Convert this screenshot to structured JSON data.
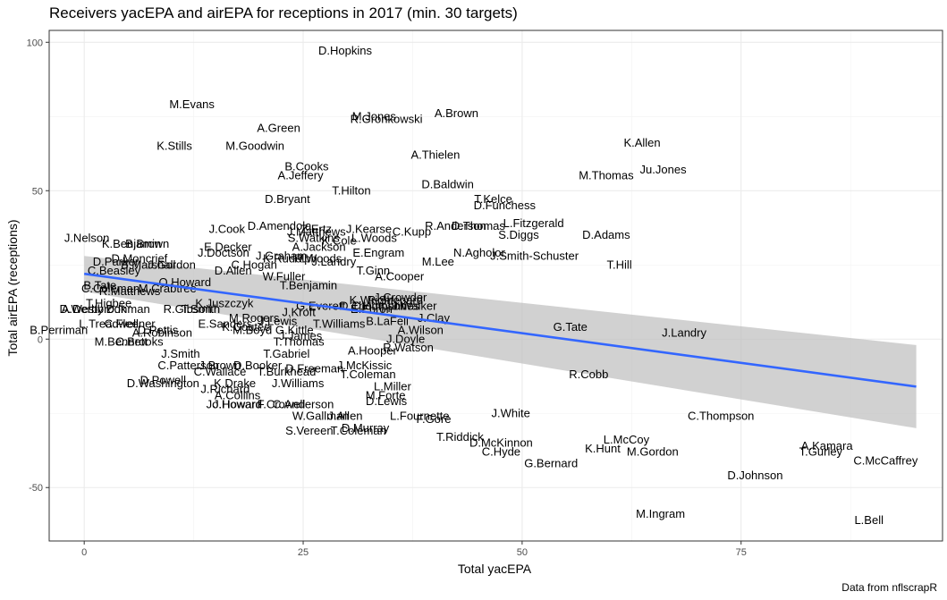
{
  "chart_data": {
    "type": "scatter",
    "title": "Receivers yacEPA and airEPA for receptions in 2017 (min. 30 targets)",
    "xlabel": "Total yacEPA",
    "ylabel": "Total airEPA (receptions)",
    "caption": "Data from nflscrapR",
    "xlim": [
      -4,
      98
    ],
    "ylim": [
      -68,
      104
    ],
    "xticks": [
      0,
      25,
      50,
      75
    ],
    "yticks": [
      -50,
      0,
      50,
      100
    ],
    "grid": true,
    "colors": {
      "fit_line": "#3366ff",
      "ribbon": "#bdbdbd",
      "panel_border": "#333333",
      "grid": "#ebebeb"
    },
    "trend": {
      "x": [
        0,
        95
      ],
      "y": [
        22,
        -16
      ],
      "ci_x": [
        0,
        95
      ],
      "ci_upper": [
        28,
        -2
      ],
      "ci_lower": [
        16,
        -30
      ]
    },
    "points": [
      {
        "label": "D.Hopkins",
        "x": 29.8,
        "y": 97
      },
      {
        "label": "M.Evans",
        "x": 12.3,
        "y": 79
      },
      {
        "label": "A.Brown",
        "x": 42.5,
        "y": 76
      },
      {
        "label": "M.Jones",
        "x": 33.1,
        "y": 75
      },
      {
        "label": "R.Gronkowski",
        "x": 34.5,
        "y": 74
      },
      {
        "label": "A.Green",
        "x": 22.2,
        "y": 71
      },
      {
        "label": "K.Stills",
        "x": 10.3,
        "y": 65
      },
      {
        "label": "M.Goodwin",
        "x": 19.5,
        "y": 65
      },
      {
        "label": "K.Allen",
        "x": 63.7,
        "y": 66
      },
      {
        "label": "A.Thielen",
        "x": 40.1,
        "y": 62
      },
      {
        "label": "Ju.Jones",
        "x": 66.1,
        "y": 57
      },
      {
        "label": "B.Cooks",
        "x": 25.4,
        "y": 58
      },
      {
        "label": "M.Thomas",
        "x": 59.6,
        "y": 55
      },
      {
        "label": "A.Jeffery",
        "x": 24.7,
        "y": 55
      },
      {
        "label": "D.Baldwin",
        "x": 41.5,
        "y": 52
      },
      {
        "label": "T.Hilton",
        "x": 30.5,
        "y": 50
      },
      {
        "label": "D.Bryant",
        "x": 23.2,
        "y": 47
      },
      {
        "label": "T.Kelce",
        "x": 46.7,
        "y": 47
      },
      {
        "label": "D.Funchess",
        "x": 48.0,
        "y": 45
      },
      {
        "label": "L.Fitzgerald",
        "x": 51.3,
        "y": 39
      },
      {
        "label": "R.Anderson",
        "x": 42.4,
        "y": 38
      },
      {
        "label": "D.Thomas",
        "x": 45.0,
        "y": 38
      },
      {
        "label": "D.Amendola",
        "x": 22.3,
        "y": 38
      },
      {
        "label": "Z.Ertz",
        "x": 26.5,
        "y": 37
      },
      {
        "label": "J.Kearse",
        "x": 32.5,
        "y": 37
      },
      {
        "label": "C.Kupp",
        "x": 37.4,
        "y": 36
      },
      {
        "label": "J.Matthews",
        "x": 26.5,
        "y": 36
      },
      {
        "label": "J.Cook",
        "x": 16.3,
        "y": 37
      },
      {
        "label": "S.Diggs",
        "x": 49.6,
        "y": 35
      },
      {
        "label": "D.Adams",
        "x": 59.6,
        "y": 35
      },
      {
        "label": "J.Nelson",
        "x": 0.3,
        "y": 34
      },
      {
        "label": "L.Woods",
        "x": 33.1,
        "y": 34
      },
      {
        "label": "S.Watkins",
        "x": 26.2,
        "y": 34
      },
      {
        "label": "K.Benjamin",
        "x": 5.4,
        "y": 32
      },
      {
        "label": "B.Brown",
        "x": 7.2,
        "y": 32
      },
      {
        "label": "K.Cole",
        "x": 29.1,
        "y": 33
      },
      {
        "label": "A.Jackson",
        "x": 26.8,
        "y": 31
      },
      {
        "label": "E.Decker",
        "x": 16.4,
        "y": 31
      },
      {
        "label": "J.Doctson",
        "x": 15.9,
        "y": 29
      },
      {
        "label": "E.Engram",
        "x": 33.6,
        "y": 29
      },
      {
        "label": "N.Agholor",
        "x": 45.1,
        "y": 29
      },
      {
        "label": "J.Smith-Schuster",
        "x": 51.4,
        "y": 28
      },
      {
        "label": "D.Moncrief",
        "x": 6.3,
        "y": 27
      },
      {
        "label": "M.Lee",
        "x": 40.4,
        "y": 26
      },
      {
        "label": "T.Hill",
        "x": 61.1,
        "y": 25
      },
      {
        "label": "D.Parker",
        "x": 3.6,
        "y": 26
      },
      {
        "label": "J.Graham",
        "x": 22.5,
        "y": 28
      },
      {
        "label": "R.Woods",
        "x": 26.7,
        "y": 27
      },
      {
        "label": "J.Landry_alt",
        "x": 28.5,
        "y": 26
      },
      {
        "label": "C.Hogan",
        "x": 19.4,
        "y": 25
      },
      {
        "label": "K.Rudolph",
        "x": 23.5,
        "y": 27
      },
      {
        "label": "B.Marshall",
        "x": 7.3,
        "y": 25
      },
      {
        "label": "J.Gordon",
        "x": 10.0,
        "y": 25
      },
      {
        "label": "D.Allen",
        "x": 17.0,
        "y": 23
      },
      {
        "label": "W.Fuller",
        "x": 22.8,
        "y": 21
      },
      {
        "label": "C.Beasley",
        "x": 3.4,
        "y": 23
      },
      {
        "label": "T.Ginn",
        "x": 33.0,
        "y": 23
      },
      {
        "label": "A.Cooper",
        "x": 36.0,
        "y": 21
      },
      {
        "label": "T.Benjamin",
        "x": 25.6,
        "y": 18
      },
      {
        "label": "O.Howard",
        "x": 11.5,
        "y": 19
      },
      {
        "label": "B.Tate",
        "x": 1.8,
        "y": 18
      },
      {
        "label": "C.Coleman",
        "x": 3.0,
        "y": 17
      },
      {
        "label": "R.Matthews",
        "x": 5.2,
        "y": 16
      },
      {
        "label": "M.Crabtree",
        "x": 9.5,
        "y": 17
      },
      {
        "label": "J.Crowder",
        "x": 36.1,
        "y": 14
      },
      {
        "label": "K.Wright",
        "x": 32.8,
        "y": 13
      },
      {
        "label": "R.Shepard",
        "x": 35.5,
        "y": 13
      },
      {
        "label": "G.Everett",
        "x": 27.0,
        "y": 11
      },
      {
        "label": "D.Thompson",
        "x": 33.0,
        "y": 11
      },
      {
        "label": "C.Humphries",
        "x": 34.4,
        "y": 11
      },
      {
        "label": "J.Walker",
        "x": 37.7,
        "y": 11
      },
      {
        "label": "A.Derby",
        "x": -0.2,
        "y": 10
      },
      {
        "label": "T.Higbee",
        "x": 2.8,
        "y": 12
      },
      {
        "label": "E.Ebron",
        "x": 32.8,
        "y": 10
      },
      {
        "label": "D.Inman",
        "x": 5.0,
        "y": 10
      },
      {
        "label": "R.Gibson",
        "x": 11.8,
        "y": 10
      },
      {
        "label": "D.Westbrook",
        "x": 1.0,
        "y": 10
      },
      {
        "label": "K.Juszczyk",
        "x": 16.0,
        "y": 12
      },
      {
        "label": "T.Smith",
        "x": 13.3,
        "y": 10
      },
      {
        "label": "M.Rogers",
        "x": 19.4,
        "y": 7
      },
      {
        "label": "J.Kroft",
        "x": 24.5,
        "y": 9
      },
      {
        "label": "B.LaFell",
        "x": 34.6,
        "y": 6
      },
      {
        "label": "T.Williams",
        "x": 29.1,
        "y": 5
      },
      {
        "label": "J.Clay",
        "x": 39.9,
        "y": 7
      },
      {
        "label": "A.Wilson",
        "x": 38.4,
        "y": 3
      },
      {
        "label": "G.Tate",
        "x": 55.5,
        "y": 4
      },
      {
        "label": "J.Landry",
        "x": 68.5,
        "y": 2
      },
      {
        "label": "B.Perriman",
        "x": -2.9,
        "y": 3
      },
      {
        "label": "L.Treadwell",
        "x": 2.8,
        "y": 5
      },
      {
        "label": "J.Lewis",
        "x": 22.1,
        "y": 6
      },
      {
        "label": "E.Sanders",
        "x": 16.1,
        "y": 5
      },
      {
        "label": "C.Fleener",
        "x": 5.2,
        "y": 5
      },
      {
        "label": "D.Pettis",
        "x": 8.4,
        "y": 3
      },
      {
        "label": "A.Robinson",
        "x": 8.9,
        "y": 2
      },
      {
        "label": "K.Coutee",
        "x": 18.5,
        "y": 4
      },
      {
        "label": "M.Boyd",
        "x": 19.2,
        "y": 3
      },
      {
        "label": "G.Kittle",
        "x": 24.0,
        "y": 3
      },
      {
        "label": "J.James",
        "x": 24.7,
        "y": 1
      },
      {
        "label": "M.Bennett",
        "x": 4.2,
        "y": -1
      },
      {
        "label": "C.Brooks",
        "x": 6.3,
        "y": -1
      },
      {
        "label": "T.Thomas",
        "x": 24.5,
        "y": -1
      },
      {
        "label": "J.Doyle",
        "x": 36.7,
        "y": 0
      },
      {
        "label": "A.Hooper",
        "x": 32.9,
        "y": -4
      },
      {
        "label": "R.Watson",
        "x": 37.0,
        "y": -3
      },
      {
        "label": "J.Smith",
        "x": 11.0,
        "y": -5
      },
      {
        "label": "T.Gabriel",
        "x": 23.1,
        "y": -5
      },
      {
        "label": "C.Patterson",
        "x": 11.9,
        "y": -9
      },
      {
        "label": "J.Brown",
        "x": 15.5,
        "y": -9
      },
      {
        "label": "D.Booker",
        "x": 19.8,
        "y": -9
      },
      {
        "label": "D.Freeman",
        "x": 26.3,
        "y": -10
      },
      {
        "label": "J.McKissic",
        "x": 32.0,
        "y": -9
      },
      {
        "label": "C.Wallace",
        "x": 15.5,
        "y": -11
      },
      {
        "label": "T.Burkhead",
        "x": 23.1,
        "y": -11
      },
      {
        "label": "T.Coleman",
        "x": 32.4,
        "y": -12
      },
      {
        "label": "J.Williams",
        "x": 24.4,
        "y": -15
      },
      {
        "label": "L.Miller",
        "x": 35.2,
        "y": -16
      },
      {
        "label": "R.Cobb",
        "x": 57.6,
        "y": -12
      },
      {
        "label": "D.Powell",
        "x": 9.0,
        "y": -14
      },
      {
        "label": "D.Washington",
        "x": 9.0,
        "y": -15
      },
      {
        "label": "K.Drake",
        "x": 17.2,
        "y": -15
      },
      {
        "label": "J.Richard",
        "x": 16.1,
        "y": -17
      },
      {
        "label": "A.Collins",
        "x": 17.5,
        "y": -19
      },
      {
        "label": "M.Forte",
        "x": 34.4,
        "y": -19
      },
      {
        "label": "D.Lewis",
        "x": 34.5,
        "y": -21
      },
      {
        "label": "J.Howard",
        "x": 17.5,
        "y": -22
      },
      {
        "label": "Jo.Howard",
        "x": 17.1,
        "y": -22
      },
      {
        "label": "F.Crowell",
        "x": 22.5,
        "y": -22
      },
      {
        "label": "C.Anderson",
        "x": 25.0,
        "y": -22
      },
      {
        "label": "W.Gallman",
        "x": 27.0,
        "y": -26
      },
      {
        "label": "J.Allen",
        "x": 29.8,
        "y": -26
      },
      {
        "label": "L.Fournette",
        "x": 38.3,
        "y": -26
      },
      {
        "label": "F.Gore",
        "x": 39.9,
        "y": -27
      },
      {
        "label": "J.White",
        "x": 48.7,
        "y": -25
      },
      {
        "label": "C.Thompson",
        "x": 72.7,
        "y": -26
      },
      {
        "label": "S.Vereen",
        "x": 25.7,
        "y": -31
      },
      {
        "label": "D.Murray",
        "x": 32.1,
        "y": -30
      },
      {
        "label": "T.Coleman2",
        "x": 31.3,
        "y": -31
      },
      {
        "label": "T.Riddick",
        "x": 42.9,
        "y": -33
      },
      {
        "label": "L.McCoy",
        "x": 61.9,
        "y": -34
      },
      {
        "label": "D.McKinnon",
        "x": 47.6,
        "y": -35
      },
      {
        "label": "K.Hunt",
        "x": 59.2,
        "y": -37
      },
      {
        "label": "C.Hyde",
        "x": 47.6,
        "y": -38
      },
      {
        "label": "M.Gordon",
        "x": 64.9,
        "y": -38
      },
      {
        "label": "A.Kamara",
        "x": 84.8,
        "y": -36
      },
      {
        "label": "T.Gurley",
        "x": 84.1,
        "y": -38
      },
      {
        "label": "C.McCaffrey",
        "x": 91.5,
        "y": -41
      },
      {
        "label": "G.Bernard",
        "x": 53.3,
        "y": -42
      },
      {
        "label": "D.Johnson",
        "x": 76.6,
        "y": -46
      },
      {
        "label": "M.Ingram",
        "x": 65.8,
        "y": -59
      },
      {
        "label": "L.Bell",
        "x": 89.6,
        "y": -61
      }
    ]
  }
}
